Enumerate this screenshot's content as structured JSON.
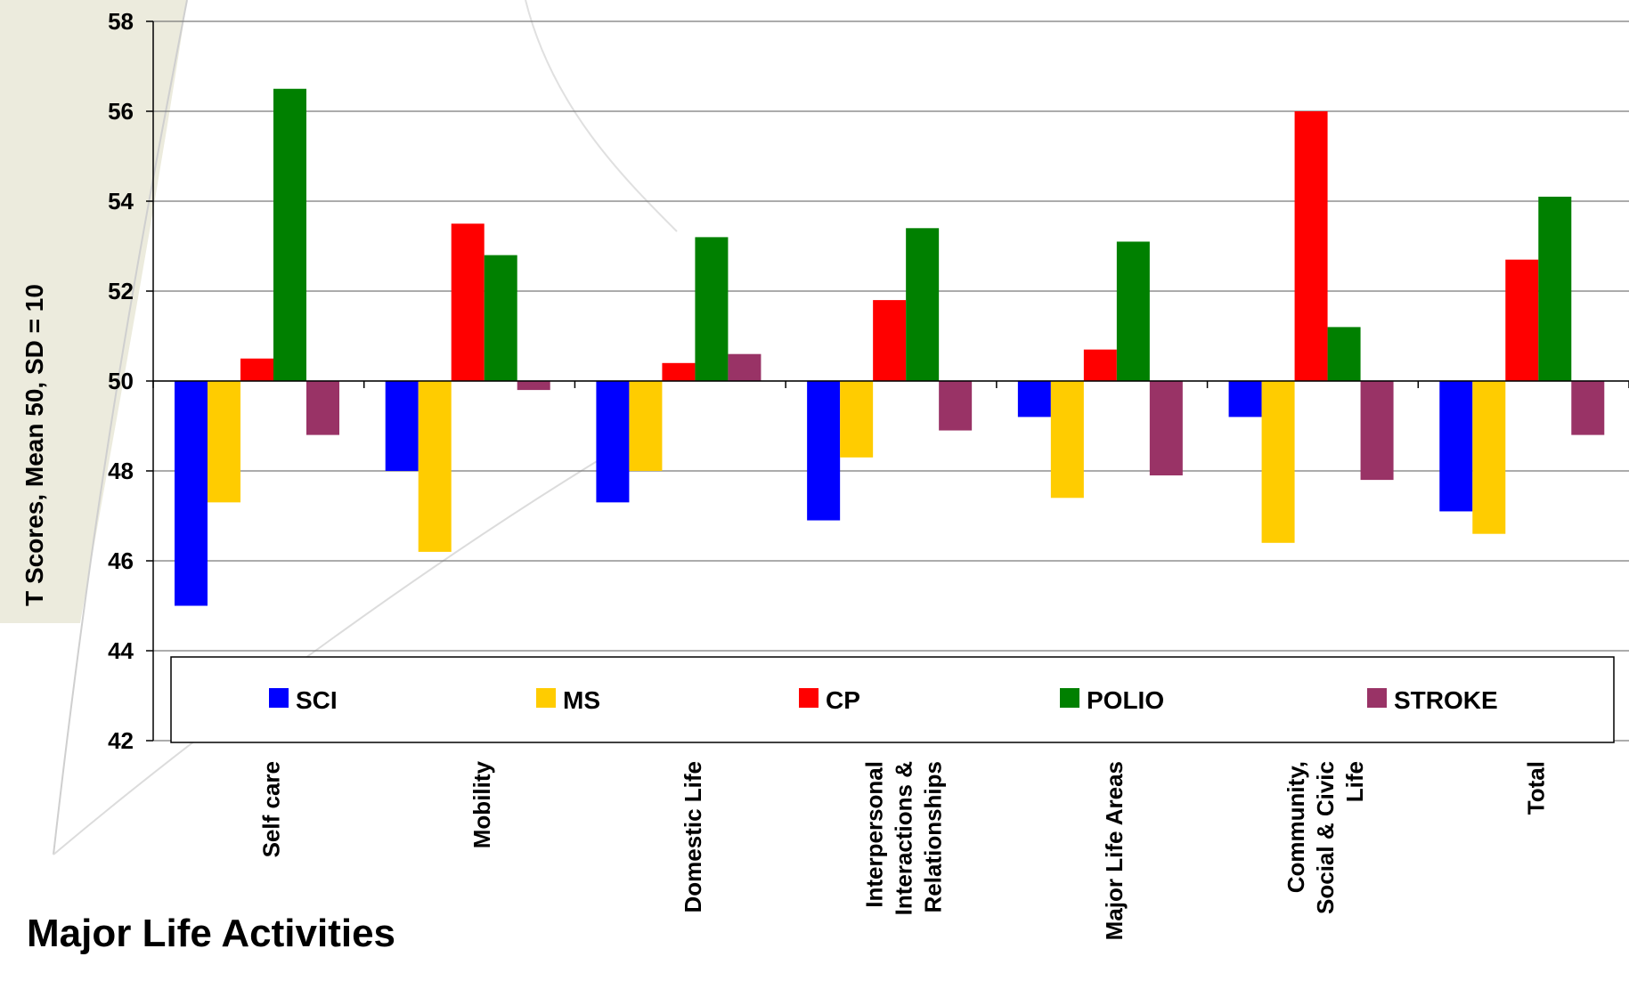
{
  "chart_data": {
    "type": "bar",
    "title": "Major Life Activities",
    "xlabel": "",
    "ylabel": "T Scores, Mean 50, SD = 10",
    "ylim": [
      42,
      58
    ],
    "yticks": [
      42,
      44,
      46,
      48,
      50,
      52,
      54,
      56,
      58
    ],
    "baseline": 50,
    "categories": [
      "Self care",
      "Mobility",
      "Domestic Life",
      "Interpersonal Interactions & Relationships",
      "Major Life Areas",
      "Community, Social & Civic Life",
      "Total"
    ],
    "category_lines": [
      [
        "Self care"
      ],
      [
        "Mobility"
      ],
      [
        "Domestic Life"
      ],
      [
        "Interpersonal",
        "Interactions &",
        "Relationships"
      ],
      [
        "Major Life Areas"
      ],
      [
        "Community,",
        "Social & Civic",
        "Life"
      ],
      [
        "Total"
      ]
    ],
    "series": [
      {
        "name": "SCI",
        "color": "#0000FF",
        "values": [
          45.0,
          48.0,
          47.3,
          46.9,
          49.2,
          49.2,
          47.1
        ]
      },
      {
        "name": "MS",
        "color": "#FFCC00",
        "values": [
          47.3,
          46.2,
          48.0,
          48.3,
          47.4,
          46.4,
          46.6
        ]
      },
      {
        "name": "CP",
        "color": "#FF0000",
        "values": [
          50.5,
          53.5,
          50.4,
          51.8,
          50.7,
          56.0,
          52.7
        ]
      },
      {
        "name": "POLIO",
        "color": "#008000",
        "values": [
          56.5,
          52.8,
          53.2,
          53.4,
          53.1,
          51.2,
          54.1
        ]
      },
      {
        "name": "STROKE",
        "color": "#993366",
        "values": [
          48.8,
          49.8,
          50.6,
          48.9,
          47.9,
          47.8,
          48.8
        ]
      }
    ],
    "grid": true,
    "legend": "bottom-inside"
  }
}
